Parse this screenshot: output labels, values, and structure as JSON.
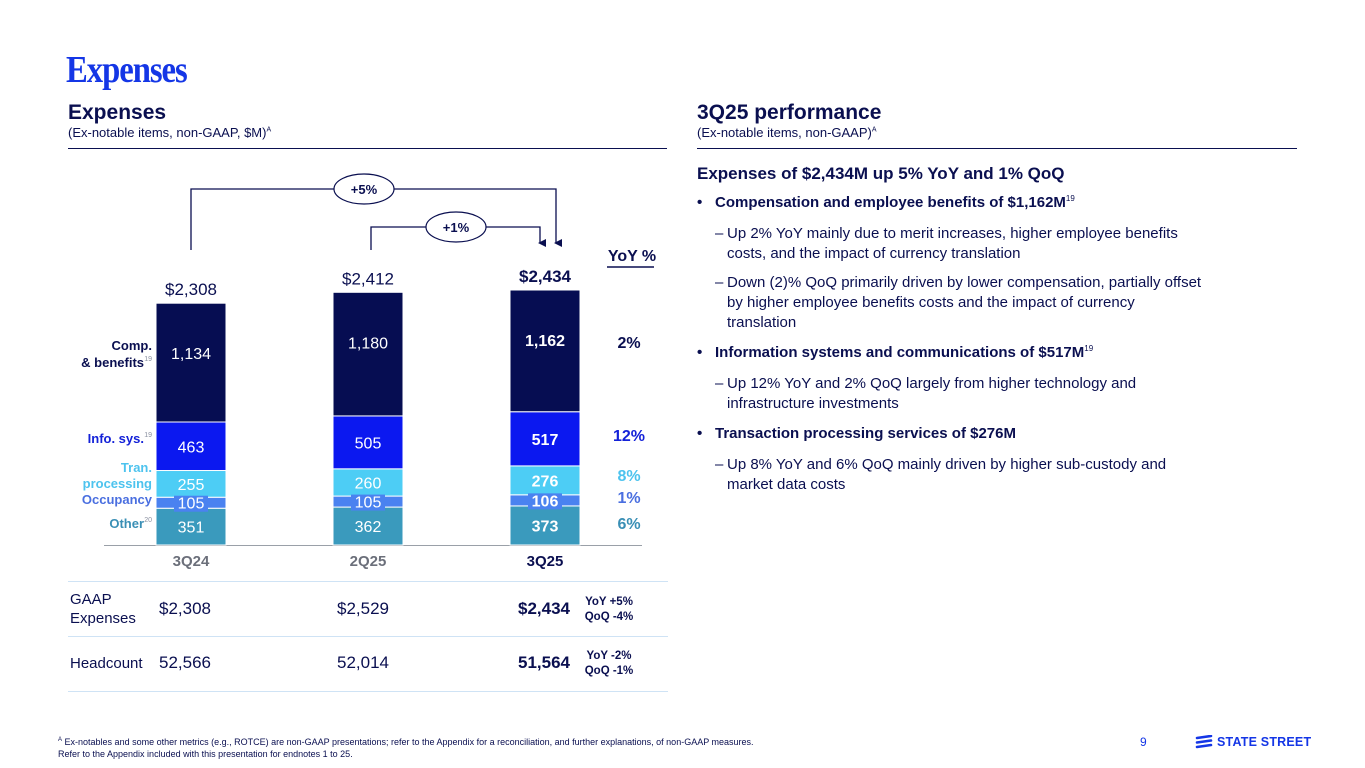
{
  "slide": {
    "title": "Expenses",
    "page_number": "9",
    "brand": "STATE STREET"
  },
  "left": {
    "title": "Expenses",
    "subtitle": "(Ex-notable items, non-GAAP, $M)",
    "subtitle_sup": "A"
  },
  "right": {
    "title": "3Q25 performance",
    "subtitle": "(Ex-notable items, non-GAAP)",
    "subtitle_sup": "A",
    "headline": "Expenses of $2,434M up 5% YoY and 1% QoQ",
    "bullets": [
      {
        "text": "Compensation and employee benefits of $1,162M",
        "sup": "19",
        "subs": [
          [
            "Up 2% YoY mainly due to merit increases, higher employee benefits",
            "costs, and the impact of currency translation"
          ],
          [
            "Down (2)% QoQ primarily driven by lower compensation, partially offset",
            "by higher employee benefits costs and the impact of currency",
            "translation"
          ]
        ]
      },
      {
        "text": "Information systems and communications of $517M",
        "sup": "19",
        "subs": [
          [
            "Up 12% YoY and 2% QoQ largely from higher technology and",
            "infrastructure investments"
          ]
        ]
      },
      {
        "text": "Transaction processing services of $276M",
        "sup": "",
        "subs": [
          [
            "Up 8% YoY and 6% QoQ mainly driven by higher sub-custody and",
            "market data costs"
          ]
        ]
      }
    ]
  },
  "chart_data": {
    "type": "bar",
    "stacked": true,
    "title": "Expenses",
    "subtitle": "(Ex-notable items, non-GAAP, $M)",
    "categories": [
      "3Q24",
      "2Q25",
      "3Q25"
    ],
    "current_category": "3Q25",
    "totals": [
      "$2,308",
      "$2,412",
      "$2,434"
    ],
    "total_values": [
      2308,
      2412,
      2434
    ],
    "series": [
      {
        "name": "Other",
        "sup": "20",
        "color": "#3a9abd",
        "label_color": "#3a8fb5",
        "values": [
          351,
          362,
          373
        ],
        "yoy": "6%"
      },
      {
        "name": "Occupancy",
        "sup": "",
        "color": "#4a82f0",
        "label_color": "#4a6fe0",
        "values": [
          105,
          105,
          106
        ],
        "yoy": "1%"
      },
      {
        "name": "Tran. processing",
        "name_lines": [
          "Tran.",
          "processing"
        ],
        "sup": "",
        "color": "#4dcdf5",
        "label_color": "#4dc3ee",
        "values": [
          255,
          260,
          276
        ],
        "yoy": "8%"
      },
      {
        "name": "Info. sys.",
        "sup": "19",
        "color": "#0b18f0",
        "label_color": "#1422d8",
        "values": [
          463,
          505,
          517
        ],
        "yoy": "12%"
      },
      {
        "name": "Comp. & benefits",
        "name_lines": [
          "Comp.",
          "& benefits"
        ],
        "sup": "19",
        "color": "#060d52",
        "label_color": "#0a0f50",
        "values": [
          1134,
          1180,
          1162
        ],
        "yoy": "2%"
      }
    ],
    "yoy_header": "YoY %",
    "growth_annotations": [
      {
        "from": "3Q24",
        "to": "3Q25",
        "label": "+5%"
      },
      {
        "from": "2Q25",
        "to": "3Q25",
        "label": "+1%"
      }
    ],
    "ylim": [
      0,
      2500
    ],
    "legend": "left",
    "grid": false
  },
  "table": {
    "rows": [
      {
        "label": "GAAP Expenses",
        "label_lines": [
          "GAAP",
          "Expenses"
        ],
        "values": [
          "$2,308",
          "$2,529",
          "$2,434"
        ],
        "yoy": "YoY +5%",
        "qoq": "QoQ -4%"
      },
      {
        "label": "Headcount",
        "label_lines": [
          "Headcount"
        ],
        "values": [
          "52,566",
          "52,014",
          "51,564"
        ],
        "yoy": "YoY -2%",
        "qoq": "QoQ -1%"
      }
    ]
  },
  "footnote": {
    "sup": "A",
    "line1": "Ex-notables and some other metrics (e.g., ROTCE) are non-GAAP presentations; refer to the Appendix for a reconciliation, and further explanations, of non-GAAP measures.",
    "line2": "Refer to the Appendix included with this presentation for endnotes 1 to 25."
  }
}
